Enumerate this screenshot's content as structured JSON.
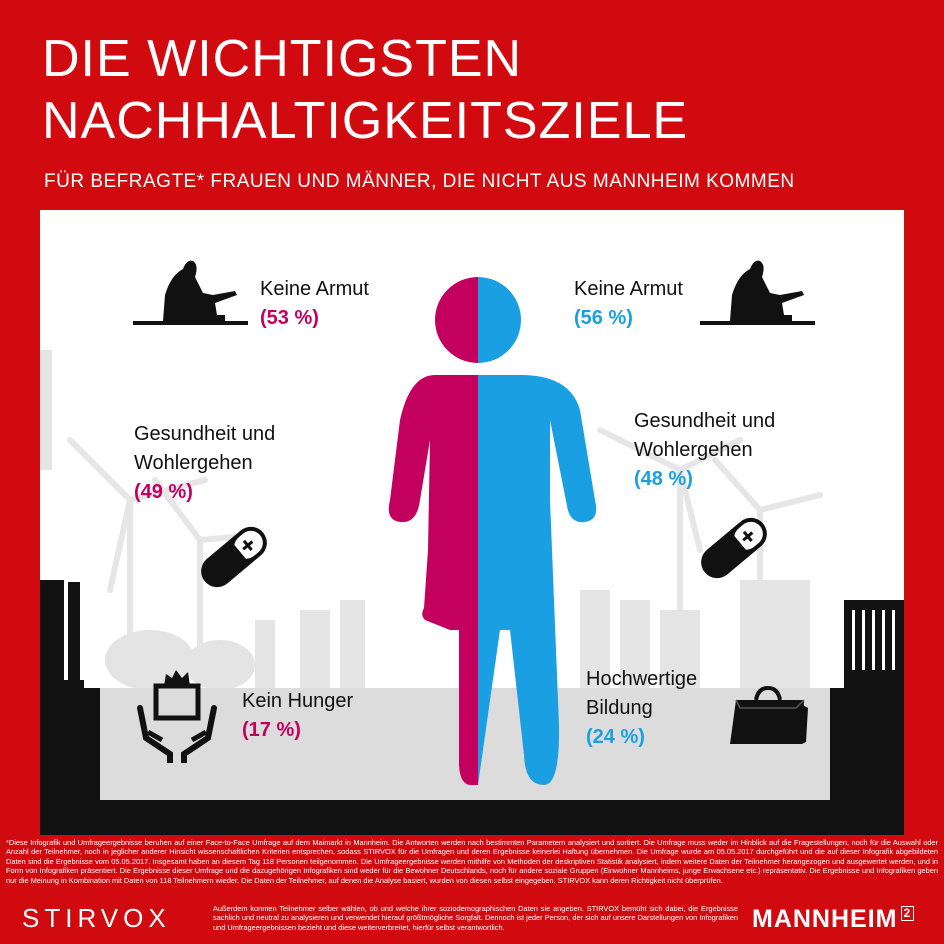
{
  "header": {
    "title_line1": "DIE WICHTIGSTEN",
    "title_line2": "NACHHALTIGKEITSZIELE",
    "subtitle": "FÜR BEFRAGTE* FRAUEN UND MÄNNER, DIE NICHT AUS MANNHEIM KOMMEN"
  },
  "colors": {
    "background": "#d10a10",
    "women": "#c4005e",
    "men": "#1a9fe2"
  },
  "women": {
    "items": [
      {
        "label_line1": "Keine Armut",
        "label_line2": "",
        "percent": "(53 %)",
        "icon": "homeless-person-icon"
      },
      {
        "label_line1": "Gesundheit und",
        "label_line2": "Wohlergehen",
        "percent": "(49 %)",
        "icon": "pill-icon"
      },
      {
        "label_line1": "Kein Hunger",
        "label_line2": "",
        "percent": "(17 %)",
        "icon": "food-donation-icon"
      }
    ]
  },
  "men": {
    "items": [
      {
        "label_line1": "Keine Armut",
        "label_line2": "",
        "percent": "(56 %)",
        "icon": "homeless-person-icon"
      },
      {
        "label_line1": "Gesundheit und",
        "label_line2": "Wohlergehen",
        "percent": "(48 %)",
        "icon": "pill-icon"
      },
      {
        "label_line1": "Hochwertige",
        "label_line2": "Bildung",
        "percent": "(24 %)",
        "icon": "bag-icon"
      }
    ]
  },
  "footer": {
    "disclaimer": "*Diese Infografik und Umfrageergebnisse beruhen auf einer Face-to-Face Umfrage auf dem Maimarkt in Mannheim. Die Antworten werden nach bestimmten Parametern analysiert und sortiert. Die Umfrage muss weder im Hinblick auf die Fragestellungen, noch für die Auswahl oder Anzahl der Teilnehmer, noch in jeglicher anderer Hinsicht wissenschaftlichen Kriterien entsprechen, sodass STIRVOX für die Umfragen und deren Ergebnisse keinerlei Haftung übernehmen. Die Umfrage wurde am 05.05.2017 durchgeführt und die auf dieser Infografik abgebildeten Daten sind die Ergebnisse vom 05.05.2017. Insgesamt haben an diesem Tag 118 Personen teilgenommen. Die Umfrageergebnisse werden mithilfe von Methoden der deskriptiven Statistik analysiert, indem weitere Daten der Teilnehmer herangezogen und ausgewertet werden, und in Form von Infografiken präsentiert. Die Ergebnisse dieser Umfrage und die dazugehörigen Infografiken sind weder für die Bewohner Deutschlands, noch für andere soziale Gruppen (Einwohner Mannheims, junge Erwachsene etc.) repräsentativ. Die Ergebnisse und Infografiken geben nur die Meinung in Kombination mit Daten von 118 Teilnehmern wieder. Die Daten der Teilnehmer, auf denen die Analyse basiert, wurden von diesen selbst eingegeben. STIRVOX kann deren Richtigkeit nicht überprüfen.",
    "disclaimer2": "Außerdem konnten Teilnehmer selber wählen, ob und welche ihrer soziodemographischen Daten sie angeben. STIRVOX bemüht sich dabei, die Ergebnisse sachlich und neutral zu analysieren und verwendet hierauf größtmögliche Sorgfalt. Dennoch ist jeder Person, der sich auf unsere Darstellungen von Infografiken und Umfrageergebnissen bezieht und diese weiterverbreitet, hierfür selbst verantwortlich.",
    "brand_left": "STIRVOX",
    "brand_right": "MANNHEIM",
    "brand_right_sup": "2"
  }
}
